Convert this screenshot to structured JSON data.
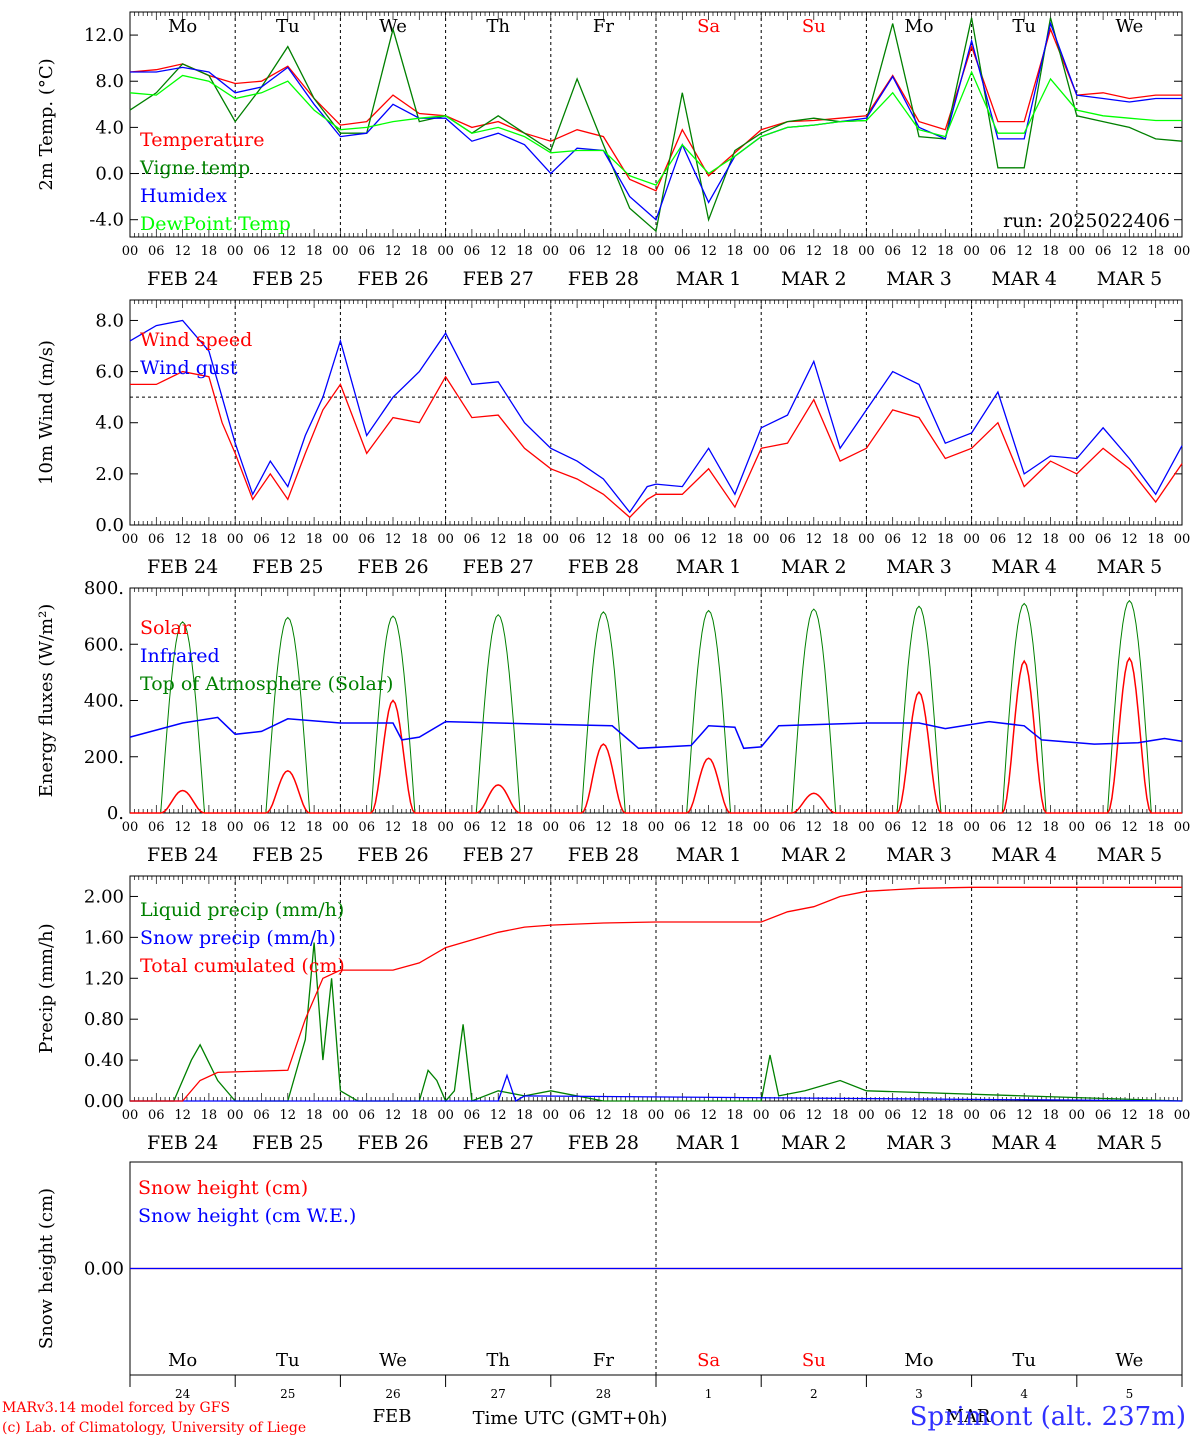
{
  "footer": {
    "model_line": "MARv3.14 model forced by GFS",
    "credit_line": "(c) Lab. of Climatology, University of Liege",
    "station": "Sprimont (alt. 237m)",
    "time_axis_title": "Time UTC (GMT+0h)",
    "month_feb": "FEB",
    "month_mar": "MAR"
  },
  "x_axis": {
    "hour_ticks": [
      "00",
      "06",
      "12",
      "18"
    ],
    "day_labels": [
      "FEB 24",
      "FEB 25",
      "FEB 26",
      "FEB 27",
      "FEB 28",
      "MAR  1",
      "MAR  2",
      "MAR  3",
      "MAR  4",
      "MAR  5"
    ],
    "day_numbers": [
      "24",
      "25",
      "26",
      "27",
      "28",
      "1",
      "2",
      "3",
      "4",
      "5"
    ],
    "weekdays": [
      "Mo",
      "Tu",
      "We",
      "Th",
      "Fr",
      "Sa",
      "Su",
      "Mo",
      "Tu",
      "We"
    ],
    "weekend_color": "#ff0000",
    "weekday_color": "#000000"
  },
  "chart_data": [
    {
      "id": "temperature",
      "type": "line",
      "ylabel": "2m Temp. (°C)",
      "ylim": [
        -5.5,
        14.0
      ],
      "yticks": [
        -4.0,
        0.0,
        4.0,
        8.0,
        12.0
      ],
      "ytick_labels": [
        "-4.0",
        "0.0",
        "4.0",
        "8.0",
        "12.0"
      ],
      "ref_line": 0.0,
      "annotation": "run: 2025022406",
      "x_unit": "hours since FEB 24 00 UTC",
      "series": [
        {
          "name": "Temperature",
          "color": "#ff0000",
          "x": [
            0,
            6,
            12,
            18,
            24,
            30,
            36,
            42,
            48,
            54,
            60,
            66,
            72,
            78,
            84,
            90,
            96,
            102,
            108,
            114,
            120,
            126,
            132,
            138,
            144,
            150,
            156,
            162,
            168,
            174,
            180,
            186,
            192,
            198,
            204,
            210,
            216,
            222,
            228,
            234,
            240
          ],
          "y": [
            8.8,
            9.0,
            9.5,
            8.5,
            7.8,
            8.0,
            9.3,
            6.5,
            4.2,
            4.5,
            6.8,
            5.2,
            5.0,
            4.0,
            4.5,
            3.5,
            2.8,
            3.8,
            3.2,
            -0.5,
            -1.5,
            3.8,
            -0.2,
            1.8,
            3.8,
            4.5,
            4.6,
            4.8,
            5.0,
            8.5,
            4.5,
            3.8,
            11.0,
            4.5,
            4.5,
            12.5,
            6.8,
            7.0,
            6.5,
            6.8,
            6.8
          ]
        },
        {
          "name": "Vigne temp",
          "color": "#008000",
          "x": [
            0,
            6,
            12,
            18,
            24,
            30,
            36,
            42,
            48,
            54,
            60,
            66,
            72,
            78,
            84,
            90,
            96,
            102,
            108,
            114,
            120,
            126,
            132,
            138,
            144,
            150,
            156,
            162,
            168,
            174,
            180,
            186,
            192,
            198,
            204,
            210,
            216,
            222,
            228,
            234,
            240
          ],
          "y": [
            5.5,
            7.0,
            9.5,
            8.5,
            4.5,
            7.5,
            11.0,
            6.5,
            3.5,
            3.5,
            12.5,
            4.5,
            5.0,
            3.5,
            5.0,
            3.5,
            2.0,
            8.2,
            2.5,
            -3.0,
            -5.0,
            7.0,
            -4.0,
            2.0,
            3.5,
            4.5,
            4.8,
            4.5,
            4.6,
            13.0,
            3.2,
            3.0,
            13.5,
            0.5,
            0.5,
            13.5,
            5.0,
            4.5,
            4.0,
            3.0,
            2.8
          ]
        },
        {
          "name": "Humidex",
          "color": "#0000ff",
          "x": [
            0,
            6,
            12,
            18,
            24,
            30,
            36,
            42,
            48,
            54,
            60,
            66,
            72,
            78,
            84,
            90,
            96,
            102,
            108,
            114,
            120,
            126,
            132,
            138,
            144,
            150,
            156,
            162,
            168,
            174,
            180,
            186,
            192,
            198,
            204,
            210,
            216,
            222,
            228,
            234,
            240
          ],
          "y": [
            8.8,
            8.8,
            9.2,
            8.8,
            7.0,
            7.5,
            9.2,
            6.0,
            3.2,
            3.5,
            6.0,
            4.8,
            4.8,
            2.8,
            3.5,
            2.5,
            0.0,
            2.2,
            2.0,
            -2.0,
            -4.0,
            2.5,
            -2.5,
            1.5,
            3.2,
            4.0,
            4.2,
            4.5,
            4.8,
            8.4,
            4.0,
            3.0,
            11.5,
            3.0,
            3.0,
            13.0,
            6.8,
            6.5,
            6.2,
            6.5,
            6.5
          ]
        },
        {
          "name": "DewPoint Temp",
          "color": "#00ff00",
          "x": [
            0,
            6,
            12,
            18,
            24,
            30,
            36,
            42,
            48,
            54,
            60,
            66,
            72,
            78,
            84,
            90,
            96,
            102,
            108,
            114,
            120,
            126,
            132,
            138,
            144,
            150,
            156,
            162,
            168,
            174,
            180,
            186,
            192,
            198,
            204,
            210,
            216,
            222,
            228,
            234,
            240
          ],
          "y": [
            7.0,
            6.8,
            8.5,
            8.0,
            6.5,
            7.0,
            8.0,
            5.5,
            3.8,
            4.0,
            4.5,
            4.8,
            5.0,
            3.5,
            4.0,
            3.2,
            1.8,
            2.0,
            2.0,
            -0.2,
            -1.0,
            2.5,
            0.0,
            1.5,
            3.2,
            4.0,
            4.2,
            4.5,
            4.6,
            7.0,
            3.8,
            3.2,
            8.8,
            3.5,
            3.5,
            8.2,
            5.5,
            5.0,
            4.8,
            4.6,
            4.6
          ]
        }
      ]
    },
    {
      "id": "wind",
      "type": "line",
      "ylabel": "10m Wind (m/s)",
      "ylim": [
        0.0,
        8.8
      ],
      "yticks": [
        0.0,
        2.0,
        4.0,
        6.0,
        8.0
      ],
      "ytick_labels": [
        "0.0",
        "2.0",
        "4.0",
        "6.0",
        "8.0"
      ],
      "ref_line": 5.0,
      "x_unit": "hours since FEB 24 00 UTC",
      "series": [
        {
          "name": "Wind speed",
          "color": "#ff0000",
          "x": [
            0,
            6,
            12,
            18,
            21,
            24,
            28,
            32,
            36,
            40,
            44,
            48,
            54,
            60,
            66,
            72,
            78,
            84,
            90,
            96,
            102,
            108,
            114,
            118,
            120,
            126,
            132,
            138,
            144,
            150,
            156,
            162,
            168,
            174,
            180,
            186,
            192,
            198,
            204,
            210,
            216,
            222,
            228,
            234,
            240
          ],
          "y": [
            5.5,
            5.5,
            6.0,
            5.8,
            4.0,
            2.8,
            1.0,
            2.0,
            1.0,
            2.8,
            4.5,
            5.5,
            2.8,
            4.2,
            4.0,
            5.8,
            4.2,
            4.3,
            3.0,
            2.2,
            1.8,
            1.2,
            0.3,
            1.0,
            1.2,
            1.2,
            2.2,
            0.7,
            3.0,
            3.2,
            4.9,
            2.5,
            3.0,
            4.5,
            4.2,
            2.6,
            3.0,
            4.0,
            1.5,
            2.5,
            2.0,
            3.0,
            2.2,
            0.9,
            2.4
          ]
        },
        {
          "name": "Wind gust",
          "color": "#0000ff",
          "x": [
            0,
            6,
            12,
            18,
            21,
            24,
            28,
            32,
            36,
            40,
            44,
            48,
            54,
            60,
            66,
            72,
            78,
            84,
            90,
            96,
            102,
            108,
            114,
            118,
            120,
            126,
            132,
            138,
            144,
            150,
            156,
            162,
            168,
            174,
            180,
            186,
            192,
            198,
            204,
            210,
            216,
            222,
            228,
            234,
            240
          ],
          "y": [
            7.2,
            7.8,
            8.0,
            6.8,
            5.0,
            3.2,
            1.2,
            2.5,
            1.5,
            3.5,
            5.0,
            7.2,
            3.5,
            5.0,
            6.0,
            7.5,
            5.5,
            5.6,
            4.0,
            3.0,
            2.5,
            1.8,
            0.5,
            1.5,
            1.6,
            1.5,
            3.0,
            1.2,
            3.8,
            4.3,
            6.4,
            3.0,
            4.5,
            6.0,
            5.5,
            3.2,
            3.6,
            5.2,
            2.0,
            2.7,
            2.6,
            3.8,
            2.6,
            1.2,
            3.1
          ]
        }
      ]
    },
    {
      "id": "energy",
      "type": "line",
      "ylabel": "Energy fluxes (W/m²)",
      "ylim": [
        0,
        800
      ],
      "yticks": [
        0,
        200,
        400,
        600,
        800
      ],
      "ytick_labels": [
        "0.",
        "200.",
        "400.",
        "600.",
        "800."
      ],
      "x_unit": "hours since FEB 24 00 UTC",
      "solar_peaks": [
        80,
        150,
        400,
        100,
        245,
        195,
        70,
        430,
        540,
        550
      ],
      "toa_peaks": [
        680,
        695,
        700,
        705,
        715,
        720,
        725,
        735,
        745,
        755
      ],
      "infrared": [
        {
          "x": 0,
          "y": 270
        },
        {
          "x": 12,
          "y": 320
        },
        {
          "x": 20,
          "y": 340
        },
        {
          "x": 24,
          "y": 280
        },
        {
          "x": 30,
          "y": 290
        },
        {
          "x": 36,
          "y": 335
        },
        {
          "x": 48,
          "y": 320
        },
        {
          "x": 60,
          "y": 320
        },
        {
          "x": 62,
          "y": 260
        },
        {
          "x": 66,
          "y": 270
        },
        {
          "x": 72,
          "y": 325
        },
        {
          "x": 84,
          "y": 320
        },
        {
          "x": 96,
          "y": 315
        },
        {
          "x": 110,
          "y": 310
        },
        {
          "x": 116,
          "y": 230
        },
        {
          "x": 128,
          "y": 240
        },
        {
          "x": 132,
          "y": 310
        },
        {
          "x": 138,
          "y": 305
        },
        {
          "x": 140,
          "y": 230
        },
        {
          "x": 144,
          "y": 235
        },
        {
          "x": 148,
          "y": 310
        },
        {
          "x": 168,
          "y": 320
        },
        {
          "x": 180,
          "y": 320
        },
        {
          "x": 186,
          "y": 300
        },
        {
          "x": 196,
          "y": 325
        },
        {
          "x": 204,
          "y": 310
        },
        {
          "x": 208,
          "y": 260
        },
        {
          "x": 220,
          "y": 245
        },
        {
          "x": 230,
          "y": 250
        },
        {
          "x": 236,
          "y": 265
        },
        {
          "x": 240,
          "y": 255
        }
      ],
      "series": [
        {
          "name": "Solar",
          "color": "#ff0000"
        },
        {
          "name": "Infrared",
          "color": "#0000ff"
        },
        {
          "name": "Top of Atmosphere (Solar)",
          "color": "#008000"
        }
      ]
    },
    {
      "id": "precip",
      "type": "line",
      "ylabel": "Precip (mm/h)",
      "ylim": [
        0.0,
        2.2
      ],
      "yticks": [
        0.0,
        0.4,
        0.8,
        1.2,
        1.6,
        2.0
      ],
      "ytick_labels": [
        "0.00",
        "0.40",
        "0.80",
        "1.20",
        "1.60",
        "2.00"
      ],
      "x_unit": "hours since FEB 24 00 UTC",
      "series": [
        {
          "name": "Liquid precip (mm/h)",
          "color": "#008000",
          "x": [
            0,
            10,
            14,
            16,
            20,
            24,
            36,
            40,
            42,
            44,
            46,
            48,
            50,
            52,
            60,
            66,
            68,
            70,
            72,
            74,
            76,
            78,
            84,
            90,
            96,
            108,
            120,
            144,
            146,
            148,
            154,
            162,
            168,
            240
          ],
          "y": [
            0,
            0,
            0.4,
            0.55,
            0.2,
            0,
            0,
            0.6,
            1.55,
            0.4,
            1.2,
            0.1,
            0.05,
            0,
            0,
            0,
            0.3,
            0.2,
            0,
            0.1,
            0.75,
            0,
            0.1,
            0.05,
            0.1,
            0,
            0,
            0,
            0.45,
            0.05,
            0.1,
            0.2,
            0.1,
            0
          ]
        },
        {
          "name": "Snow precip (mm/h)",
          "color": "#0000ff",
          "x": [
            0,
            84,
            86,
            88,
            90,
            240
          ],
          "y": [
            0,
            0,
            0.25,
            0,
            0.05,
            0
          ]
        },
        {
          "name": "Total cumulated (cm)",
          "color": "#ff0000",
          "x": [
            0,
            12,
            16,
            20,
            36,
            40,
            44,
            48,
            60,
            66,
            72,
            76,
            84,
            90,
            96,
            108,
            120,
            144,
            150,
            156,
            162,
            168,
            180,
            192,
            240
          ],
          "y": [
            0,
            0,
            0.2,
            0.28,
            0.3,
            0.8,
            1.2,
            1.28,
            1.28,
            1.35,
            1.5,
            1.55,
            1.65,
            1.7,
            1.72,
            1.74,
            1.75,
            1.75,
            1.85,
            1.9,
            2.0,
            2.05,
            2.08,
            2.09,
            2.09
          ]
        }
      ]
    },
    {
      "id": "snow",
      "type": "line",
      "ylabel": "Snow height (cm)",
      "ylim": [
        -1.0,
        1.0
      ],
      "yticks": [
        0.0
      ],
      "ytick_labels": [
        "0.00"
      ],
      "x_unit": "hours since FEB 24 00 UTC",
      "series": [
        {
          "name": "Snow height (cm)",
          "color": "#ff0000",
          "x": [
            0,
            240
          ],
          "y": [
            0,
            0
          ]
        },
        {
          "name": "Snow height (cm W.E.)",
          "color": "#0000ff",
          "x": [
            0,
            240
          ],
          "y": [
            0,
            0
          ]
        }
      ]
    }
  ]
}
